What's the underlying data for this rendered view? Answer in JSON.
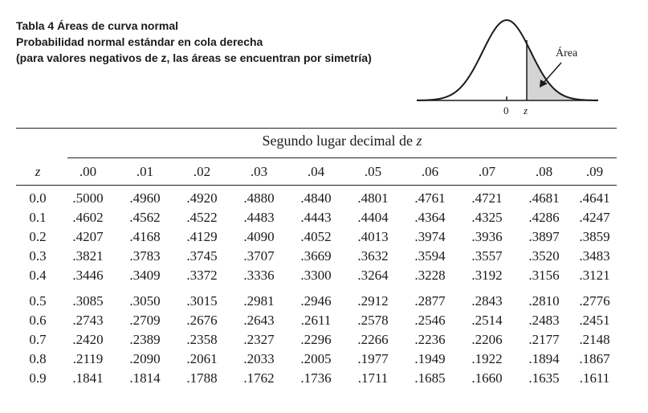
{
  "caption": {
    "line1": "Tabla 4  Áreas de curva normal",
    "line2": "Probabilidad normal estándar en cola derecha",
    "line3": "(para valores negativos de z, las áreas se encuentran por simetría)"
  },
  "figure": {
    "area_label": "Área",
    "zero_label": "0",
    "z_label": "z"
  },
  "table": {
    "spanner_text": "Segundo lugar decimal de ",
    "spanner_var": "z",
    "z_header": "z",
    "columns": [
      ".00",
      ".01",
      ".02",
      ".03",
      ".04",
      ".05",
      ".06",
      ".07",
      ".08",
      ".09"
    ],
    "rows": [
      {
        "z": "0.0",
        "values": [
          ".5000",
          ".4960",
          ".4920",
          ".4880",
          ".4840",
          ".4801",
          ".4761",
          ".4721",
          ".4681",
          ".4641"
        ]
      },
      {
        "z": "0.1",
        "values": [
          ".4602",
          ".4562",
          ".4522",
          ".4483",
          ".4443",
          ".4404",
          ".4364",
          ".4325",
          ".4286",
          ".4247"
        ]
      },
      {
        "z": "0.2",
        "values": [
          ".4207",
          ".4168",
          ".4129",
          ".4090",
          ".4052",
          ".4013",
          ".3974",
          ".3936",
          ".3897",
          ".3859"
        ]
      },
      {
        "z": "0.3",
        "values": [
          ".3821",
          ".3783",
          ".3745",
          ".3707",
          ".3669",
          ".3632",
          ".3594",
          ".3557",
          ".3520",
          ".3483"
        ]
      },
      {
        "z": "0.4",
        "values": [
          ".3446",
          ".3409",
          ".3372",
          ".3336",
          ".3300",
          ".3264",
          ".3228",
          ".3192",
          ".3156",
          ".3121"
        ]
      },
      {
        "z": "0.5",
        "values": [
          ".3085",
          ".3050",
          ".3015",
          ".2981",
          ".2946",
          ".2912",
          ".2877",
          ".2843",
          ".2810",
          ".2776"
        ]
      },
      {
        "z": "0.6",
        "values": [
          ".2743",
          ".2709",
          ".2676",
          ".2643",
          ".2611",
          ".2578",
          ".2546",
          ".2514",
          ".2483",
          ".2451"
        ]
      },
      {
        "z": "0.7",
        "values": [
          ".2420",
          ".2389",
          ".2358",
          ".2327",
          ".2296",
          ".2266",
          ".2236",
          ".2206",
          ".2177",
          ".2148"
        ]
      },
      {
        "z": "0.8",
        "values": [
          ".2119",
          ".2090",
          ".2061",
          ".2033",
          ".2005",
          ".1977",
          ".1949",
          ".1922",
          ".1894",
          ".1867"
        ]
      },
      {
        "z": "0.9",
        "values": [
          ".1841",
          ".1814",
          ".1788",
          ".1762",
          ".1736",
          ".1711",
          ".1685",
          ".1660",
          ".1635",
          ".1611"
        ]
      }
    ]
  },
  "colors": {
    "text": "#1a1a1a",
    "shade": "#d4d4d4"
  }
}
